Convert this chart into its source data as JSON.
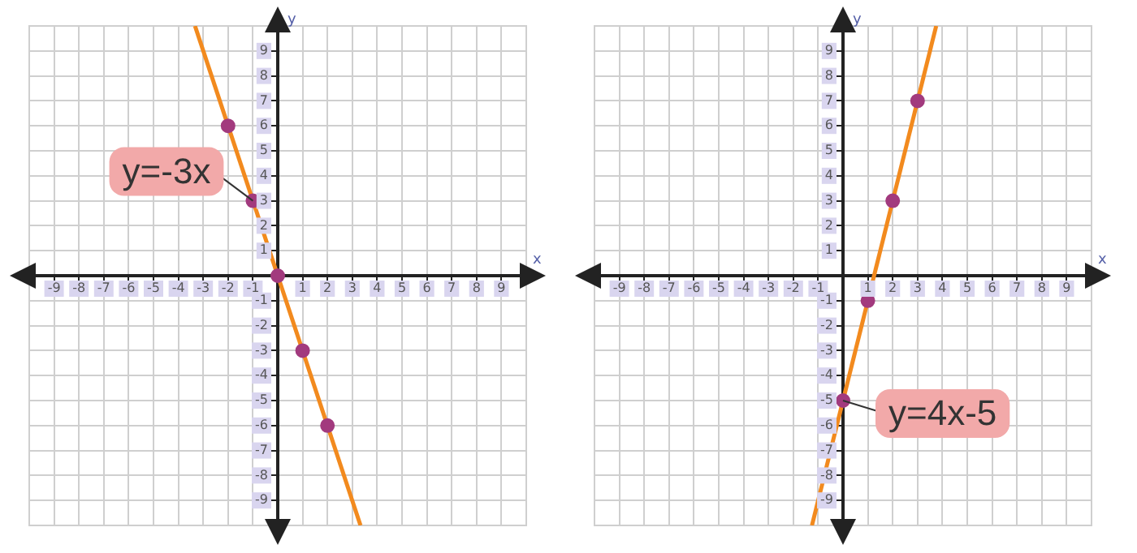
{
  "chart_data": [
    {
      "type": "line",
      "xlabel": "x",
      "ylabel": "y",
      "xlim": [
        -10,
        10
      ],
      "ylim": [
        -10,
        10
      ],
      "xticks": [
        -9,
        -8,
        -7,
        -6,
        -5,
        -4,
        -3,
        -2,
        -1,
        1,
        2,
        3,
        4,
        5,
        6,
        7,
        8,
        9
      ],
      "yticks": [
        -9,
        -8,
        -7,
        -6,
        -5,
        -4,
        -3,
        -2,
        -1,
        1,
        2,
        3,
        4,
        5,
        6,
        7,
        8,
        9
      ],
      "grid": true,
      "series": [
        {
          "type": "line",
          "color": "#f28a1e",
          "marker": "none",
          "x": [
            -3.33,
            3.33
          ],
          "values": [
            10,
            -10
          ]
        },
        {
          "type": "scatter",
          "color": "#a23a7e",
          "marker": "circle",
          "x": [
            -2,
            -1,
            0,
            1,
            2
          ],
          "values": [
            6,
            3,
            0,
            -3,
            -6
          ]
        }
      ],
      "annotations": [
        {
          "text": "y=-3x",
          "x": -1,
          "y": 3
        }
      ]
    },
    {
      "type": "line",
      "xlabel": "x",
      "ylabel": "y",
      "xlim": [
        -10,
        10
      ],
      "ylim": [
        -10,
        10
      ],
      "xticks": [
        -9,
        -8,
        -7,
        -6,
        -5,
        -4,
        -3,
        -2,
        -1,
        1,
        2,
        3,
        4,
        5,
        6,
        7,
        8,
        9
      ],
      "yticks": [
        -9,
        -8,
        -7,
        -6,
        -5,
        -4,
        -3,
        -2,
        -1,
        1,
        2,
        3,
        4,
        5,
        6,
        7,
        8,
        9
      ],
      "grid": true,
      "series": [
        {
          "type": "line",
          "color": "#f28a1e",
          "marker": "none",
          "x": [
            -1.25,
            3.75
          ],
          "values": [
            -10,
            10
          ]
        },
        {
          "type": "scatter",
          "color": "#a23a7e",
          "marker": "circle",
          "x": [
            0,
            1,
            2,
            3
          ],
          "values": [
            -5,
            -1,
            3,
            7
          ]
        }
      ],
      "annotations": [
        {
          "text": "y=4x-5",
          "x": 0,
          "y": -5
        }
      ]
    }
  ]
}
